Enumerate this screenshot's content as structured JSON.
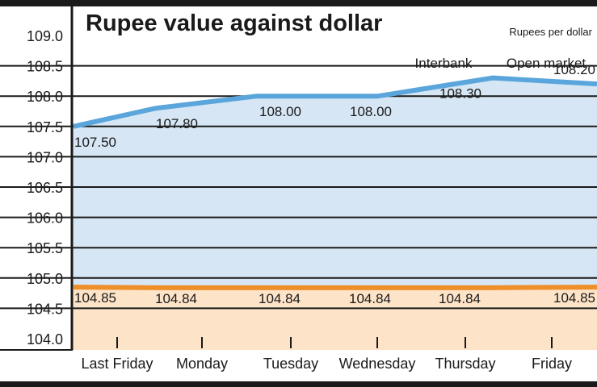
{
  "chart_data": {
    "type": "line",
    "title": "Rupee value against dollar",
    "unit_label": "Rupees per dollar",
    "categories": [
      "Last Friday",
      "Monday",
      "Tuesday",
      "Wednesday",
      "Thursday",
      "Friday"
    ],
    "ylim": [
      104.0,
      109.0
    ],
    "y_ticks": [
      "109.0",
      "108.5",
      "108.0",
      "107.5",
      "107.0",
      "106.5",
      "106.0",
      "105.5",
      "105.0",
      "104.5",
      "104.0"
    ],
    "grid": true,
    "series": [
      {
        "name": "Open market",
        "color": "#5aa6dc",
        "fill": "#d6e6f4",
        "values": [
          107.5,
          107.8,
          108.0,
          108.0,
          108.3,
          108.2
        ],
        "labels": [
          "107.50",
          "107.80",
          "108.00",
          "108.00",
          "108.30",
          "108.20"
        ]
      },
      {
        "name": "Interbank",
        "color": "#ef8f2a",
        "fill": "#fde3c8",
        "values": [
          104.85,
          104.84,
          104.84,
          104.84,
          104.84,
          104.85
        ],
        "labels": [
          "104.85",
          "104.84",
          "104.84",
          "104.84",
          "104.84",
          "104.85"
        ]
      }
    ],
    "legend": [
      "Interbank",
      "Open market"
    ],
    "legend_placement": "top-right"
  }
}
